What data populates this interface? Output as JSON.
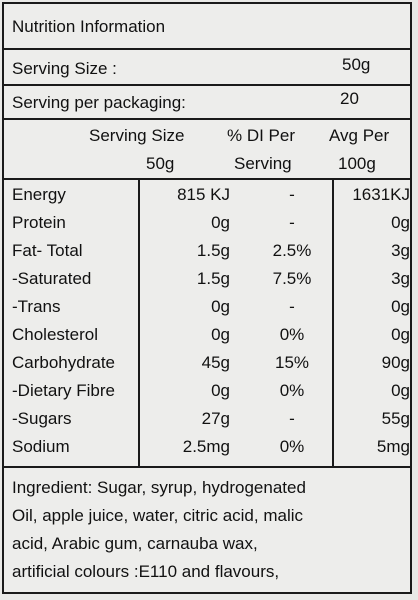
{
  "title": "Nutrition Information",
  "serving_size": {
    "label": "Serving Size :",
    "value": "50g"
  },
  "serving_per_packaging": {
    "label": "Serving per packaging:",
    "value": "20"
  },
  "columns": {
    "serving_line1": "Serving Size",
    "serving_line2": "50g",
    "di_line1": "% DI Per",
    "di_line2": "Serving",
    "avg_line1": "Avg Per",
    "avg_line2": "100g"
  },
  "nutrients": [
    {
      "name": "Energy",
      "serving": "815 KJ",
      "di": "-",
      "avg": "1631KJ"
    },
    {
      "name": "Protein",
      "serving": "0g",
      "di": "-",
      "avg": "0g"
    },
    {
      "name": "Fat- Total",
      "serving": "1.5g",
      "di": "2.5%",
      "avg": "3g"
    },
    {
      "name": "-Saturated",
      "serving": "1.5g",
      "di": "7.5%",
      "avg": "3g"
    },
    {
      "name": "-Trans",
      "serving": "0g",
      "di": "-",
      "avg": "0g"
    },
    {
      "name": "Cholesterol",
      "serving": "0g",
      "di": "0%",
      "avg": "0g"
    },
    {
      "name": "Carbohydrate",
      "serving": "45g",
      "di": "15%",
      "avg": "90g"
    },
    {
      "name": "-Dietary Fibre",
      "serving": "0g",
      "di": "0%",
      "avg": "0g"
    },
    {
      "name": "-Sugars",
      "serving": "27g",
      "di": "-",
      "avg": "55g"
    },
    {
      "name": "Sodium",
      "serving": "2.5mg",
      "di": "0%",
      "avg": "5mg"
    }
  ],
  "ingredients": [
    "Ingredient: Sugar, syrup, hydrogenated",
    "Oil, apple juice, water, citric acid, malic",
    "acid, Arabic gum, carnauba wax,",
    "artificial colours :E110 and flavours,"
  ]
}
